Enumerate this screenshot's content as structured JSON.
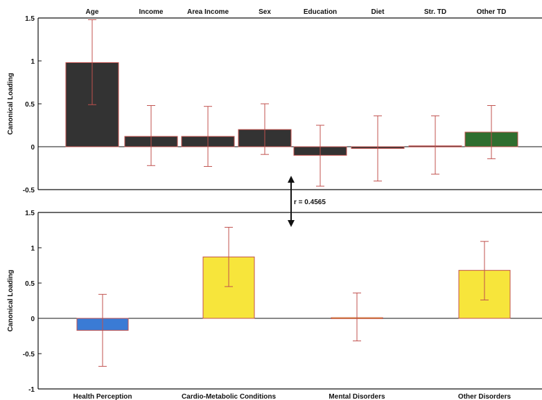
{
  "chart_data": [
    {
      "type": "bar",
      "ylabel": "Canonical Loading",
      "ylim": [
        -0.5,
        1.5
      ],
      "yticks": [
        "1.5",
        "1",
        "0.5",
        "0",
        "-0.5"
      ],
      "yticks_values": [
        1.5,
        1,
        0.5,
        0,
        -0.5
      ],
      "category_axis": "top",
      "categories": [
        "Age",
        "Income",
        "Area Income",
        "Sex",
        "Education",
        "Diet",
        "Str. TD",
        "Other TD"
      ],
      "values": [
        0.98,
        0.12,
        0.12,
        0.2,
        -0.1,
        -0.02,
        0.01,
        0.17
      ],
      "error_low": [
        0.49,
        -0.22,
        -0.23,
        -0.09,
        -0.46,
        -0.4,
        -0.32,
        -0.14
      ],
      "error_high": [
        1.48,
        0.48,
        0.47,
        0.5,
        0.25,
        0.36,
        0.36,
        0.48
      ],
      "colors": [
        "#333333",
        "#333333",
        "#333333",
        "#333333",
        "#333333",
        "#333333",
        "#333333",
        "#2f6e2f"
      ],
      "grid": false
    },
    {
      "type": "bar",
      "ylabel": "Canonical Loading",
      "ylim": [
        -1,
        1.5
      ],
      "yticks": [
        "1.5",
        "1",
        "0.5",
        "0",
        "-0.5",
        "-1"
      ],
      "yticks_values": [
        1.5,
        1,
        0.5,
        0,
        -0.5,
        -1
      ],
      "category_axis": "bottom",
      "categories": [
        "Health Perception",
        "Cardio-Metabolic Conditions",
        "Mental Disorders",
        "Other Disorders"
      ],
      "values": [
        -0.17,
        0.87,
        0.01,
        0.68
      ],
      "error_low": [
        -0.68,
        0.45,
        -0.32,
        0.26
      ],
      "error_high": [
        0.34,
        1.29,
        0.36,
        1.09
      ],
      "colors": [
        "#3a7bd5",
        "#f7e53b",
        "#f7e53b",
        "#f7e53b"
      ],
      "grid": false
    }
  ],
  "annotation": {
    "correlation_text": "r = 0.4565"
  },
  "colors": {
    "error_bar": "#c0504d",
    "bar_edge": "#c0504d",
    "axis": "#111111"
  }
}
